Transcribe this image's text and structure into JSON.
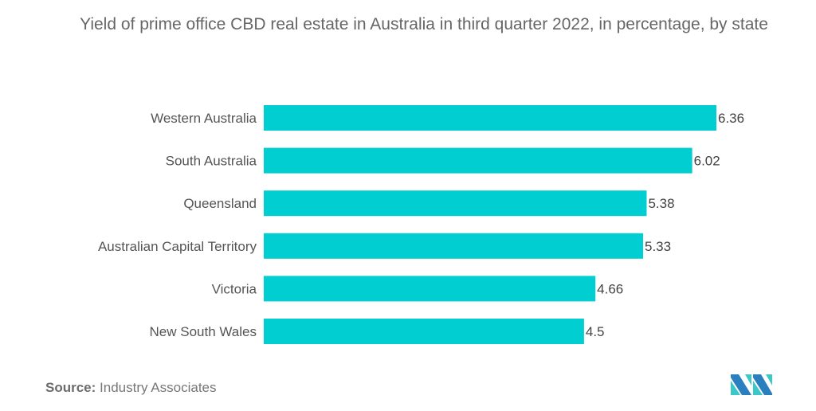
{
  "chart_data": {
    "type": "bar",
    "orientation": "horizontal",
    "title": "Yield of prime office CBD real estate in Australia in third quarter 2022, in percentage, by state",
    "categories": [
      "Western Australia",
      "South Australia",
      "Queensland",
      "Australian Capital Territory",
      "Victoria",
      "New South Wales"
    ],
    "values": [
      6.36,
      6.02,
      5.38,
      5.33,
      4.66,
      4.5
    ],
    "value_labels": [
      "6.36",
      "6.02",
      "5.38",
      "5.33",
      "4.66",
      "4.5"
    ],
    "xlabel": "",
    "ylabel": "",
    "xlim": [
      0,
      6.36
    ],
    "grid": false,
    "legend": "none",
    "bar_color": "#00CED1"
  },
  "footer": {
    "source_label": "Source:",
    "source_value": "Industry Associates"
  },
  "logo": {
    "name": "mordor-intelligence-logo",
    "colors": [
      "#2a7fbf",
      "#3cc8c8"
    ]
  }
}
